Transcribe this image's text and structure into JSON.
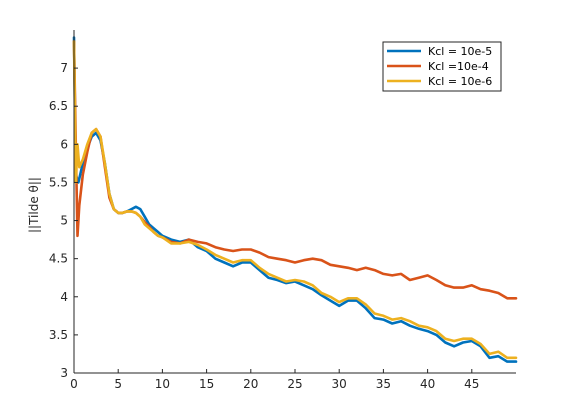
{
  "chart_data": {
    "type": "line",
    "title": "",
    "xlabel": "",
    "ylabel": "||Tilde θ||",
    "xlim": [
      0,
      50
    ],
    "ylim": [
      3,
      7.5
    ],
    "x_ticks": [
      "0",
      "5",
      "10",
      "15",
      "20",
      "25",
      "30",
      "35",
      "40",
      "45"
    ],
    "y_ticks": [
      "3",
      "3.5",
      "4",
      "4.5",
      "5",
      "5.5",
      "6",
      "6.5",
      "7"
    ],
    "grid": false,
    "legend_position": "top-right",
    "series": [
      {
        "name": "Kcl = 10e-5",
        "color": "#0072BD",
        "x": [
          0,
          0.2,
          0.5,
          1,
          1.5,
          2,
          2.5,
          3,
          3.5,
          4,
          4.5,
          5,
          5.5,
          6,
          6.5,
          7,
          7.5,
          8,
          8.5,
          9,
          9.5,
          10,
          11,
          12,
          13,
          14,
          15,
          16,
          17,
          18,
          19,
          20,
          21,
          22,
          23,
          24,
          25,
          26,
          27,
          28,
          29,
          30,
          31,
          32,
          33,
          34,
          35,
          36,
          37,
          38,
          39,
          40,
          41,
          42,
          43,
          44,
          45,
          46,
          47,
          48,
          49,
          50
        ],
        "y": [
          7.4,
          5.6,
          5.5,
          5.75,
          5.95,
          6.1,
          6.15,
          6.05,
          5.75,
          5.35,
          5.15,
          5.1,
          5.1,
          5.12,
          5.15,
          5.18,
          5.15,
          5.05,
          4.95,
          4.9,
          4.85,
          4.8,
          4.75,
          4.72,
          4.75,
          4.65,
          4.6,
          4.5,
          4.45,
          4.4,
          4.45,
          4.45,
          4.35,
          4.25,
          4.22,
          4.18,
          4.2,
          4.15,
          4.1,
          4.02,
          3.95,
          3.88,
          3.95,
          3.95,
          3.85,
          3.72,
          3.7,
          3.65,
          3.68,
          3.62,
          3.58,
          3.55,
          3.5,
          3.4,
          3.35,
          3.4,
          3.42,
          3.35,
          3.2,
          3.22,
          3.15,
          3.15
        ]
      },
      {
        "name": "Kcl =10e-4",
        "color": "#D95319",
        "x": [
          0,
          0.2,
          0.4,
          0.6,
          1,
          1.5,
          2,
          2.5,
          3,
          3.5,
          4,
          4.5,
          5,
          5.5,
          6,
          6.5,
          7,
          7.5,
          8,
          8.5,
          9,
          9.5,
          10,
          11,
          12,
          13,
          14,
          15,
          16,
          17,
          18,
          19,
          20,
          21,
          22,
          23,
          24,
          25,
          26,
          27,
          28,
          29,
          30,
          31,
          32,
          33,
          34,
          35,
          36,
          37,
          38,
          39,
          40,
          41,
          42,
          43,
          44,
          45,
          46,
          47,
          48,
          49,
          50
        ],
        "y": [
          7.35,
          6.0,
          4.8,
          5.2,
          5.6,
          5.9,
          6.15,
          6.2,
          6.1,
          5.7,
          5.3,
          5.15,
          5.1,
          5.1,
          5.12,
          5.12,
          5.1,
          5.05,
          4.98,
          4.92,
          4.85,
          4.8,
          4.78,
          4.72,
          4.7,
          4.75,
          4.72,
          4.7,
          4.65,
          4.62,
          4.6,
          4.62,
          4.62,
          4.58,
          4.52,
          4.5,
          4.48,
          4.45,
          4.48,
          4.5,
          4.48,
          4.42,
          4.4,
          4.38,
          4.35,
          4.38,
          4.35,
          4.3,
          4.28,
          4.3,
          4.22,
          4.25,
          4.28,
          4.22,
          4.15,
          4.12,
          4.12,
          4.15,
          4.1,
          4.08,
          4.05,
          3.98,
          3.98
        ]
      },
      {
        "name": "Kcl = 10e-6",
        "color": "#EDB120",
        "x": [
          0,
          0.2,
          0.4,
          0.6,
          1,
          1.5,
          2,
          2.5,
          3,
          3.5,
          4,
          4.5,
          5,
          5.5,
          6,
          6.5,
          7,
          7.5,
          8,
          8.5,
          9,
          9.5,
          10,
          11,
          12,
          13,
          14,
          15,
          16,
          17,
          18,
          19,
          20,
          21,
          22,
          23,
          24,
          25,
          26,
          27,
          28,
          29,
          30,
          31,
          32,
          33,
          34,
          35,
          36,
          37,
          38,
          39,
          40,
          41,
          42,
          43,
          44,
          45,
          46,
          47,
          48,
          49,
          50
        ],
        "y": [
          7.35,
          5.5,
          6.0,
          5.7,
          5.8,
          6.0,
          6.15,
          6.2,
          6.1,
          5.75,
          5.35,
          5.15,
          5.1,
          5.1,
          5.12,
          5.12,
          5.1,
          5.05,
          4.95,
          4.9,
          4.85,
          4.8,
          4.78,
          4.7,
          4.7,
          4.72,
          4.68,
          4.62,
          4.55,
          4.5,
          4.45,
          4.48,
          4.48,
          4.38,
          4.3,
          4.25,
          4.2,
          4.22,
          4.2,
          4.15,
          4.05,
          4.0,
          3.93,
          3.98,
          3.98,
          3.9,
          3.78,
          3.75,
          3.7,
          3.72,
          3.68,
          3.62,
          3.6,
          3.55,
          3.45,
          3.42,
          3.45,
          3.45,
          3.38,
          3.25,
          3.28,
          3.2,
          3.2
        ]
      }
    ]
  }
}
